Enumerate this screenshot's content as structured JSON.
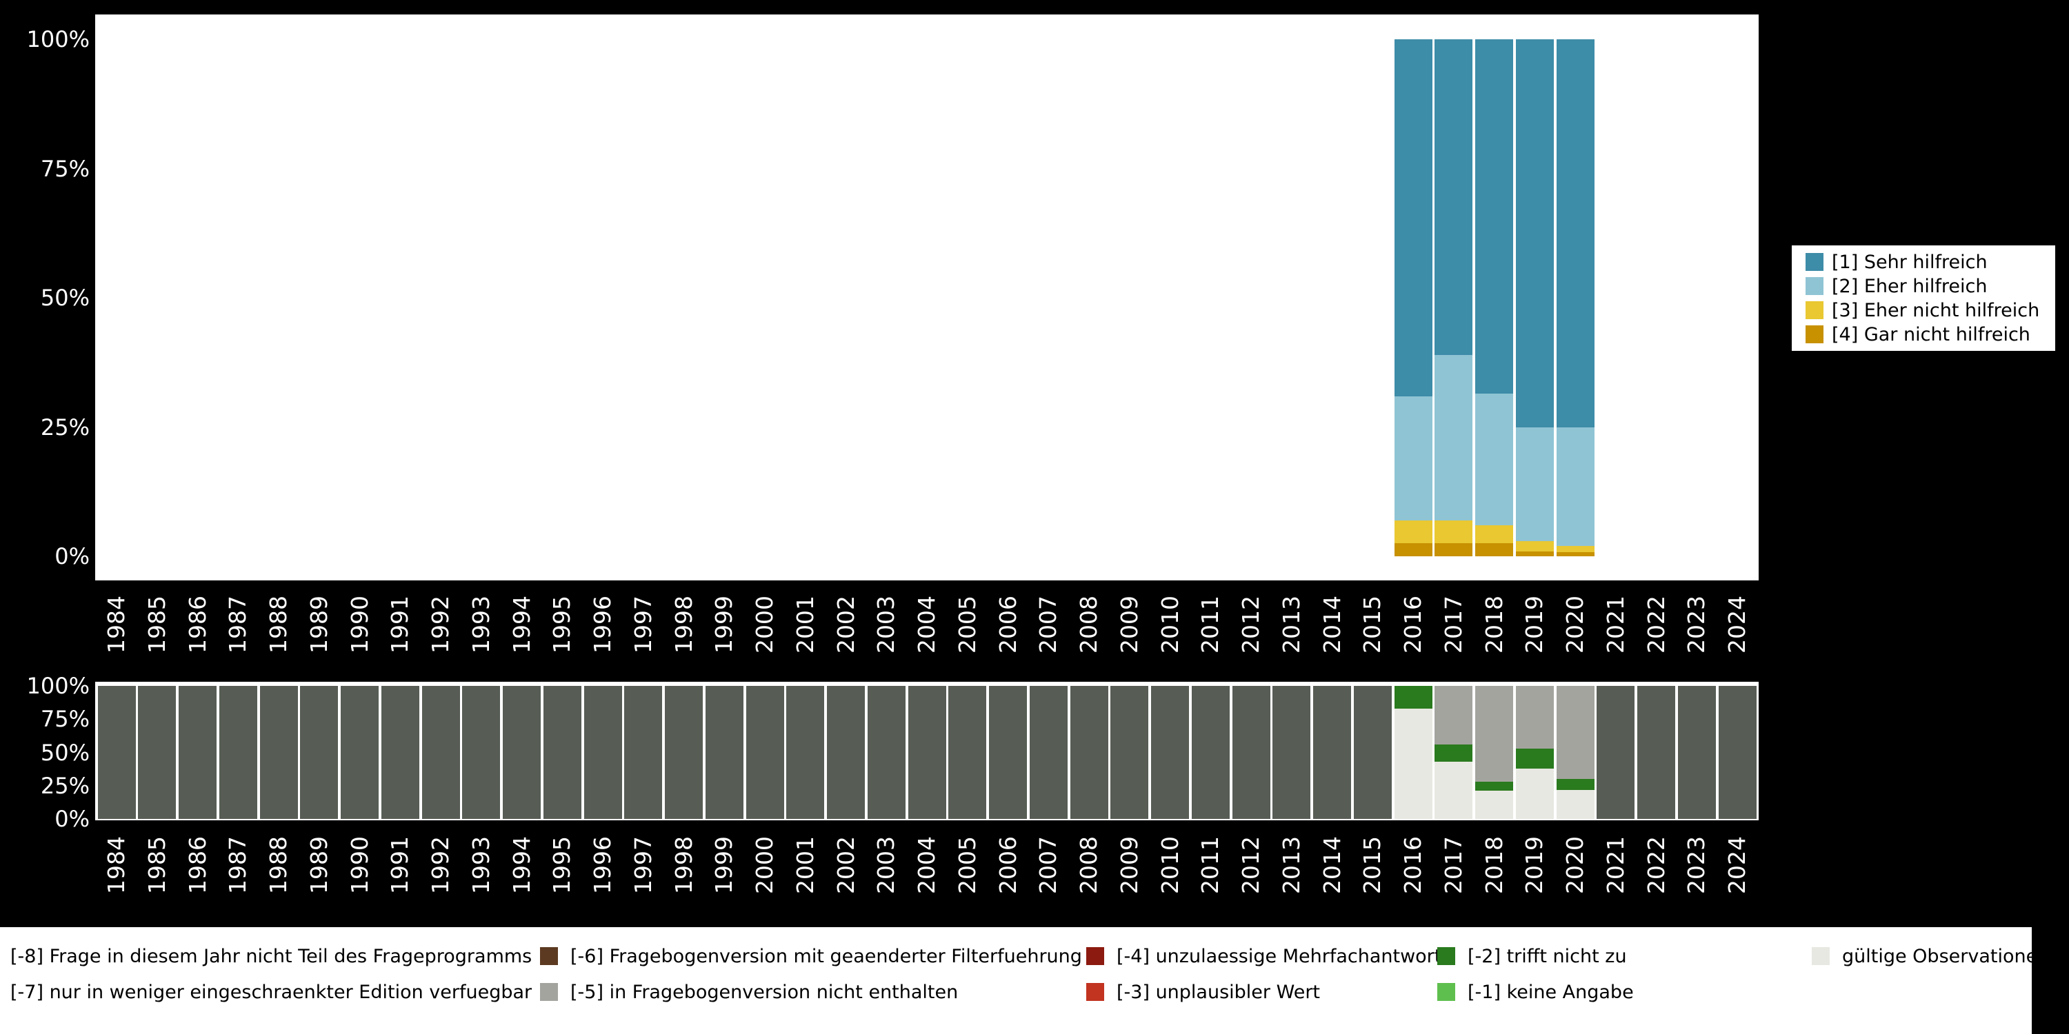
{
  "page": {
    "background": "#000000",
    "panel_background": "#ffffff",
    "axis_text_color": "#ffffff"
  },
  "chart_data": [
    {
      "id": "responses-chart",
      "type": "bar",
      "subtype": "stacked_percent",
      "title": "",
      "xlabel": "",
      "ylabel": "",
      "ylim": [
        0,
        100
      ],
      "grid": false,
      "yticks": [
        {
          "label": "0%",
          "value": 0
        },
        {
          "label": "25%",
          "value": 25
        },
        {
          "label": "50%",
          "value": 50
        },
        {
          "label": "75%",
          "value": 75
        },
        {
          "label": "100%",
          "value": 100
        }
      ],
      "categories": [
        "1984",
        "1985",
        "1986",
        "1987",
        "1988",
        "1989",
        "1990",
        "1991",
        "1992",
        "1993",
        "1994",
        "1995",
        "1996",
        "1997",
        "1998",
        "1999",
        "2000",
        "2001",
        "2002",
        "2003",
        "2004",
        "2005",
        "2006",
        "2007",
        "2008",
        "2009",
        "2010",
        "2011",
        "2012",
        "2013",
        "2014",
        "2015",
        "2016",
        "2017",
        "2018",
        "2019",
        "2020",
        "2021",
        "2022",
        "2023",
        "2024"
      ],
      "stacking_note": "series listed bottom-to-top; years without values have no bar",
      "series": [
        {
          "name": "[4] Gar nicht hilfreich",
          "color": "#c79100",
          "values": {
            "2016": 2.5,
            "2017": 2.5,
            "2018": 2.5,
            "2019": 1.0,
            "2020": 0.8
          }
        },
        {
          "name": "[3] Eher nicht hilfreich",
          "color": "#e9c832",
          "values": {
            "2016": 4.5,
            "2017": 4.5,
            "2018": 3.5,
            "2019": 2.0,
            "2020": 1.2
          }
        },
        {
          "name": "[2] Eher hilfreich",
          "color": "#8fc4d4",
          "values": {
            "2016": 24.0,
            "2017": 32.0,
            "2018": 25.5,
            "2019": 22.0,
            "2020": 23.0
          }
        },
        {
          "name": "[1] Sehr hilfreich",
          "color": "#3d8ca8",
          "values": {
            "2016": 69.0,
            "2017": 61.0,
            "2018": 68.5,
            "2019": 75.0,
            "2020": 75.0
          }
        }
      ],
      "legend": {
        "position": "right",
        "items": [
          {
            "label": "[1] Sehr hilfreich",
            "color": "#3d8ca8"
          },
          {
            "label": "[2] Eher hilfreich",
            "color": "#8fc4d4"
          },
          {
            "label": "[3] Eher nicht hilfreich",
            "color": "#e9c832"
          },
          {
            "label": "[4] Gar nicht hilfreich",
            "color": "#c79100"
          }
        ]
      }
    },
    {
      "id": "missings-chart",
      "type": "bar",
      "subtype": "stacked_percent",
      "title": "",
      "xlabel": "",
      "ylabel": "",
      "ylim": [
        0,
        100
      ],
      "grid": false,
      "yticks": [
        {
          "label": "0%",
          "value": 0
        },
        {
          "label": "25%",
          "value": 25
        },
        {
          "label": "50%",
          "value": 50
        },
        {
          "label": "75%",
          "value": 75
        },
        {
          "label": "100%",
          "value": 100
        }
      ],
      "categories": [
        "1984",
        "1985",
        "1986",
        "1987",
        "1988",
        "1989",
        "1990",
        "1991",
        "1992",
        "1993",
        "1994",
        "1995",
        "1996",
        "1997",
        "1998",
        "1999",
        "2000",
        "2001",
        "2002",
        "2003",
        "2004",
        "2005",
        "2006",
        "2007",
        "2008",
        "2009",
        "2010",
        "2011",
        "2012",
        "2013",
        "2014",
        "2015",
        "2016",
        "2017",
        "2018",
        "2019",
        "2020",
        "2021",
        "2022",
        "2023",
        "2024"
      ],
      "stacking_note": "series listed bottom-to-top; years without values are filled by default_fill",
      "default_fill": {
        "name": "[-8] Frage in diesem Jahr nicht Teil des Frageprogramms",
        "color": "#575d55",
        "value": 100
      },
      "series": [
        {
          "name": "gültige Observationen",
          "color": "#e8e8e2",
          "values": {
            "2016": 83,
            "2017": 43,
            "2018": 21,
            "2019": 38,
            "2020": 22
          }
        },
        {
          "name": "[-2] trifft nicht zu",
          "color": "#2a7a1e",
          "values": {
            "2016": 17,
            "2017": 13,
            "2018": 7,
            "2019": 15,
            "2020": 8
          }
        },
        {
          "name": "[-5] in Fragebogenversion nicht enthalten",
          "color": "#a4a49f",
          "values": {
            "2016": 0,
            "2017": 44,
            "2018": 72,
            "2019": 47,
            "2020": 70
          }
        }
      ]
    }
  ],
  "missing_legend": {
    "rows": [
      [
        {
          "label": "[-8] Frage in diesem Jahr nicht Teil des Frageprogramms",
          "color": null
        },
        {
          "label": "[-6] Fragebogenversion mit geaenderter Filterfuehrung",
          "color": "#5c3a21"
        },
        {
          "label": "[-4] unzulaessige Mehrfachantwort",
          "color": "#8c1a10"
        },
        {
          "label": "[-2] trifft nicht zu",
          "color": "#2a7a1e"
        },
        {
          "label": "gültige Observationen",
          "color": "#e8e8e2"
        }
      ],
      [
        {
          "label": "[-7] nur in weniger eingeschraenkter Edition verfuegbar",
          "color": null
        },
        {
          "label": "[-5] in Fragebogenversion nicht enthalten",
          "color": "#a4a49f"
        },
        {
          "label": "[-3] unplausibler Wert",
          "color": "#c23320"
        },
        {
          "label": "[-1] keine Angabe",
          "color": "#5fbf4e"
        },
        null
      ]
    ]
  }
}
